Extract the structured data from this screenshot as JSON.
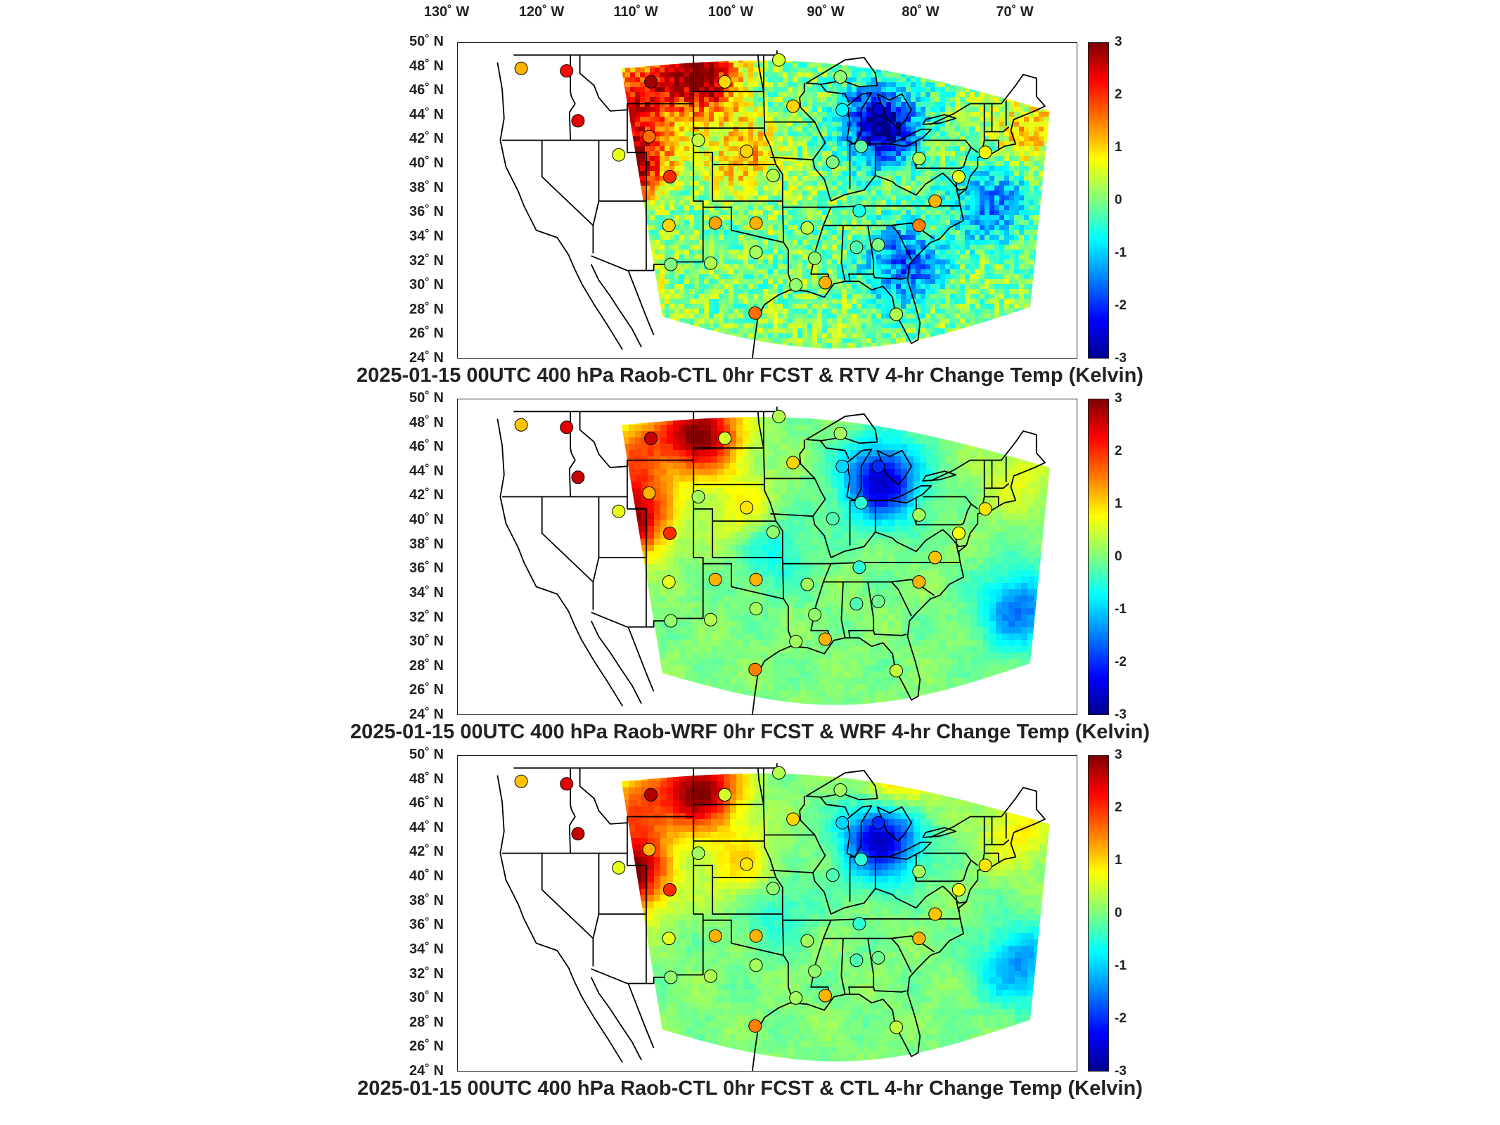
{
  "axes": {
    "lon_labels": [
      "130˚ W",
      "120˚ W",
      "110˚ W",
      "100˚ W",
      "90˚ W",
      "80˚ W",
      "70˚ W"
    ],
    "lat_labels": [
      "50˚ N",
      "48˚ N",
      "46˚ N",
      "44˚ N",
      "42˚ N",
      "40˚ N",
      "38˚ N",
      "36˚ N",
      "34˚ N",
      "32˚ N",
      "30˚ N",
      "28˚ N",
      "26˚ N",
      "24˚ N"
    ],
    "colorbar_ticks": [
      "3",
      "2",
      "1",
      "0",
      "-1",
      "-2",
      "-3"
    ],
    "colorbar_range": [
      -3,
      3
    ],
    "colormap": "jet"
  },
  "panels": [
    {
      "title": "2025-01-15 00UTC 400 hPa Raob-CTL 0hr FCST & RTV 4-hr Change Temp (Kelvin)",
      "field_style": "noisy",
      "anomalies": [
        {
          "lon": -103.5,
          "lat": 47.5,
          "value": 3.0
        },
        {
          "lon": -110,
          "lat": 46,
          "value": 2.0
        },
        {
          "lon": -111,
          "lat": 40.5,
          "value": 3.0
        },
        {
          "lon": -84.5,
          "lat": 43.5,
          "value": -3.0
        },
        {
          "lon": -82,
          "lat": 32,
          "value": -1.8
        },
        {
          "lon": -73,
          "lat": 37,
          "value": -1.5
        },
        {
          "lon": -99,
          "lat": 41,
          "value": 1.2
        },
        {
          "lon": -69,
          "lat": 43,
          "value": 1.0
        },
        {
          "lon": -112,
          "lat": 30,
          "value": 1.2
        }
      ],
      "stations": [
        {
          "lon": -122.2,
          "lat": 47.9,
          "value": 1.2
        },
        {
          "lon": -117.4,
          "lat": 47.7,
          "value": 2.2
        },
        {
          "lon": -108.5,
          "lat": 46.8,
          "value": 2.8
        },
        {
          "lon": -100.7,
          "lat": 46.8,
          "value": 1.0
        },
        {
          "lon": -93.5,
          "lat": 44.8,
          "value": 1.0
        },
        {
          "lon": -116.2,
          "lat": 43.6,
          "value": 2.4
        },
        {
          "lon": -108.7,
          "lat": 42.3,
          "value": 1.6
        },
        {
          "lon": -103.5,
          "lat": 42.0,
          "value": 0.4
        },
        {
          "lon": -98.4,
          "lat": 41.1,
          "value": 1.0
        },
        {
          "lon": -111.9,
          "lat": 40.8,
          "value": 0.6
        },
        {
          "lon": -106.5,
          "lat": 39.0,
          "value": 2.0
        },
        {
          "lon": -95.6,
          "lat": 39.1,
          "value": 0.3
        },
        {
          "lon": -89.3,
          "lat": 40.2,
          "value": 0.0
        },
        {
          "lon": -86.3,
          "lat": 41.5,
          "value": -0.2
        },
        {
          "lon": -84.5,
          "lat": 44.5,
          "value": -2.5
        },
        {
          "lon": -88.3,
          "lat": 44.5,
          "value": -0.8
        },
        {
          "lon": -80.2,
          "lat": 40.5,
          "value": 0.3
        },
        {
          "lon": -73.2,
          "lat": 41.0,
          "value": 0.8
        },
        {
          "lon": -78.5,
          "lat": 37.0,
          "value": 1.2
        },
        {
          "lon": -80.2,
          "lat": 35.0,
          "value": 1.5
        },
        {
          "lon": -86.5,
          "lat": 36.2,
          "value": -0.6
        },
        {
          "lon": -92.0,
          "lat": 34.8,
          "value": 0.4
        },
        {
          "lon": -97.4,
          "lat": 35.2,
          "value": 1.2
        },
        {
          "lon": -101.7,
          "lat": 35.2,
          "value": 1.3
        },
        {
          "lon": -106.6,
          "lat": 35.0,
          "value": 1.0
        },
        {
          "lon": -97.4,
          "lat": 32.8,
          "value": 0.2
        },
        {
          "lon": -102.2,
          "lat": 31.9,
          "value": 0.3
        },
        {
          "lon": -106.4,
          "lat": 31.8,
          "value": 0.0
        },
        {
          "lon": -91.2,
          "lat": 32.3,
          "value": 0.1
        },
        {
          "lon": -86.8,
          "lat": 33.2,
          "value": -0.3
        },
        {
          "lon": -84.5,
          "lat": 33.4,
          "value": 0.0
        },
        {
          "lon": -90.1,
          "lat": 30.3,
          "value": 1.2
        },
        {
          "lon": -82.6,
          "lat": 27.7,
          "value": 0.3
        },
        {
          "lon": -97.5,
          "lat": 27.8,
          "value": 1.6
        },
        {
          "lon": -93.2,
          "lat": 30.1,
          "value": 0.1
        },
        {
          "lon": -88.5,
          "lat": 47.2,
          "value": 0.1
        },
        {
          "lon": -76.0,
          "lat": 39.0,
          "value": 0.6
        },
        {
          "lon": -95.0,
          "lat": 48.6,
          "value": 0.5
        }
      ]
    },
    {
      "title": "2025-01-15 00UTC 400 hPa Raob-WRF 0hr FCST & WRF 4-hr Change Temp (Kelvin)",
      "field_style": "smooth",
      "anomalies": [
        {
          "lon": -103.5,
          "lat": 47.5,
          "value": 3.0
        },
        {
          "lon": -111,
          "lat": 40.5,
          "value": 3.0
        },
        {
          "lon": -110,
          "lat": 46,
          "value": 1.5
        },
        {
          "lon": -84.5,
          "lat": 43.5,
          "value": -2.6
        },
        {
          "lon": -96,
          "lat": 38,
          "value": -0.8
        },
        {
          "lon": -70,
          "lat": 33,
          "value": -1.6
        },
        {
          "lon": -99,
          "lat": 41,
          "value": 0.8
        },
        {
          "lon": -70,
          "lat": 44,
          "value": 0.6
        }
      ],
      "stations": [
        {
          "lon": -122.2,
          "lat": 47.9,
          "value": 1.1
        },
        {
          "lon": -117.4,
          "lat": 47.7,
          "value": 2.4
        },
        {
          "lon": -108.5,
          "lat": 46.8,
          "value": 2.6
        },
        {
          "lon": -100.7,
          "lat": 46.8,
          "value": 0.5
        },
        {
          "lon": -93.5,
          "lat": 44.8,
          "value": 1.0
        },
        {
          "lon": -116.2,
          "lat": 43.6,
          "value": 2.6
        },
        {
          "lon": -108.7,
          "lat": 42.3,
          "value": 1.2
        },
        {
          "lon": -103.5,
          "lat": 42.0,
          "value": 0.2
        },
        {
          "lon": -98.4,
          "lat": 41.1,
          "value": 0.9
        },
        {
          "lon": -111.9,
          "lat": 40.8,
          "value": 0.6
        },
        {
          "lon": -106.5,
          "lat": 39.0,
          "value": 2.0
        },
        {
          "lon": -95.6,
          "lat": 39.1,
          "value": 0.1
        },
        {
          "lon": -89.3,
          "lat": 40.2,
          "value": -0.3
        },
        {
          "lon": -86.3,
          "lat": 41.5,
          "value": -0.5
        },
        {
          "lon": -84.5,
          "lat": 44.5,
          "value": -2.0
        },
        {
          "lon": -88.3,
          "lat": 44.5,
          "value": -1.0
        },
        {
          "lon": -80.2,
          "lat": 40.5,
          "value": 0.2
        },
        {
          "lon": -73.2,
          "lat": 41.0,
          "value": 0.9
        },
        {
          "lon": -78.5,
          "lat": 37.0,
          "value": 1.1
        },
        {
          "lon": -80.2,
          "lat": 35.0,
          "value": 1.2
        },
        {
          "lon": -86.5,
          "lat": 36.2,
          "value": -0.5
        },
        {
          "lon": -92.0,
          "lat": 34.8,
          "value": 0.2
        },
        {
          "lon": -97.4,
          "lat": 35.2,
          "value": 1.2
        },
        {
          "lon": -101.7,
          "lat": 35.2,
          "value": 1.2
        },
        {
          "lon": -106.6,
          "lat": 35.0,
          "value": 0.6
        },
        {
          "lon": -97.4,
          "lat": 32.8,
          "value": 0.2
        },
        {
          "lon": -102.2,
          "lat": 31.9,
          "value": 0.3
        },
        {
          "lon": -106.4,
          "lat": 31.8,
          "value": 0.1
        },
        {
          "lon": -91.2,
          "lat": 32.3,
          "value": 0.1
        },
        {
          "lon": -86.8,
          "lat": 33.2,
          "value": -0.3
        },
        {
          "lon": -84.5,
          "lat": 33.4,
          "value": -0.1
        },
        {
          "lon": -90.1,
          "lat": 30.3,
          "value": 1.2
        },
        {
          "lon": -82.6,
          "lat": 27.7,
          "value": 0.4
        },
        {
          "lon": -97.5,
          "lat": 27.8,
          "value": 1.5
        },
        {
          "lon": -93.2,
          "lat": 30.1,
          "value": 0.2
        },
        {
          "lon": -88.5,
          "lat": 47.2,
          "value": 0.2
        },
        {
          "lon": -76.0,
          "lat": 39.0,
          "value": 0.7
        },
        {
          "lon": -95.0,
          "lat": 48.6,
          "value": 0.3
        }
      ]
    },
    {
      "title": "2025-01-15 00UTC 400 hPa Raob-CTL 0hr FCST & CTL 4-hr Change Temp (Kelvin)",
      "field_style": "smooth",
      "anomalies": [
        {
          "lon": -103.5,
          "lat": 47.5,
          "value": 3.0
        },
        {
          "lon": -111,
          "lat": 40.5,
          "value": 3.0
        },
        {
          "lon": -110,
          "lat": 46,
          "value": 1.6
        },
        {
          "lon": -84.5,
          "lat": 43.5,
          "value": -2.7
        },
        {
          "lon": -96,
          "lat": 38,
          "value": -0.7
        },
        {
          "lon": -70,
          "lat": 33,
          "value": -1.4
        },
        {
          "lon": -99,
          "lat": 41,
          "value": 1.0
        },
        {
          "lon": -83,
          "lat": 48,
          "value": 1.2
        },
        {
          "lon": -70,
          "lat": 44,
          "value": 0.8
        }
      ],
      "stations": [
        {
          "lon": -122.2,
          "lat": 47.9,
          "value": 1.1
        },
        {
          "lon": -117.4,
          "lat": 47.7,
          "value": 2.4
        },
        {
          "lon": -108.5,
          "lat": 46.8,
          "value": 2.7
        },
        {
          "lon": -100.7,
          "lat": 46.8,
          "value": 0.5
        },
        {
          "lon": -93.5,
          "lat": 44.8,
          "value": 1.0
        },
        {
          "lon": -116.2,
          "lat": 43.6,
          "value": 2.6
        },
        {
          "lon": -108.7,
          "lat": 42.3,
          "value": 1.2
        },
        {
          "lon": -103.5,
          "lat": 42.0,
          "value": 0.2
        },
        {
          "lon": -98.4,
          "lat": 41.1,
          "value": 0.9
        },
        {
          "lon": -111.9,
          "lat": 40.8,
          "value": 0.6
        },
        {
          "lon": -106.5,
          "lat": 39.0,
          "value": 2.0
        },
        {
          "lon": -95.6,
          "lat": 39.1,
          "value": 0.1
        },
        {
          "lon": -89.3,
          "lat": 40.2,
          "value": -0.3
        },
        {
          "lon": -86.3,
          "lat": 41.5,
          "value": -0.5
        },
        {
          "lon": -84.5,
          "lat": 44.5,
          "value": -2.0
        },
        {
          "lon": -88.3,
          "lat": 44.5,
          "value": -1.0
        },
        {
          "lon": -80.2,
          "lat": 40.5,
          "value": 0.2
        },
        {
          "lon": -73.2,
          "lat": 41.0,
          "value": 0.9
        },
        {
          "lon": -78.5,
          "lat": 37.0,
          "value": 1.1
        },
        {
          "lon": -80.2,
          "lat": 35.0,
          "value": 1.2
        },
        {
          "lon": -86.5,
          "lat": 36.2,
          "value": -0.5
        },
        {
          "lon": -92.0,
          "lat": 34.8,
          "value": 0.2
        },
        {
          "lon": -97.4,
          "lat": 35.2,
          "value": 1.2
        },
        {
          "lon": -101.7,
          "lat": 35.2,
          "value": 1.2
        },
        {
          "lon": -106.6,
          "lat": 35.0,
          "value": 0.6
        },
        {
          "lon": -97.4,
          "lat": 32.8,
          "value": 0.2
        },
        {
          "lon": -102.2,
          "lat": 31.9,
          "value": 0.3
        },
        {
          "lon": -106.4,
          "lat": 31.8,
          "value": 0.1
        },
        {
          "lon": -91.2,
          "lat": 32.3,
          "value": 0.1
        },
        {
          "lon": -86.8,
          "lat": 33.2,
          "value": -0.3
        },
        {
          "lon": -84.5,
          "lat": 33.4,
          "value": -0.1
        },
        {
          "lon": -90.1,
          "lat": 30.3,
          "value": 1.2
        },
        {
          "lon": -82.6,
          "lat": 27.7,
          "value": 0.4
        },
        {
          "lon": -97.5,
          "lat": 27.8,
          "value": 1.5
        },
        {
          "lon": -93.2,
          "lat": 30.1,
          "value": 0.2
        },
        {
          "lon": -88.5,
          "lat": 47.2,
          "value": 0.2
        },
        {
          "lon": -76.0,
          "lat": 39.0,
          "value": 0.7
        },
        {
          "lon": -95.0,
          "lat": 48.6,
          "value": 0.3
        }
      ]
    }
  ]
}
